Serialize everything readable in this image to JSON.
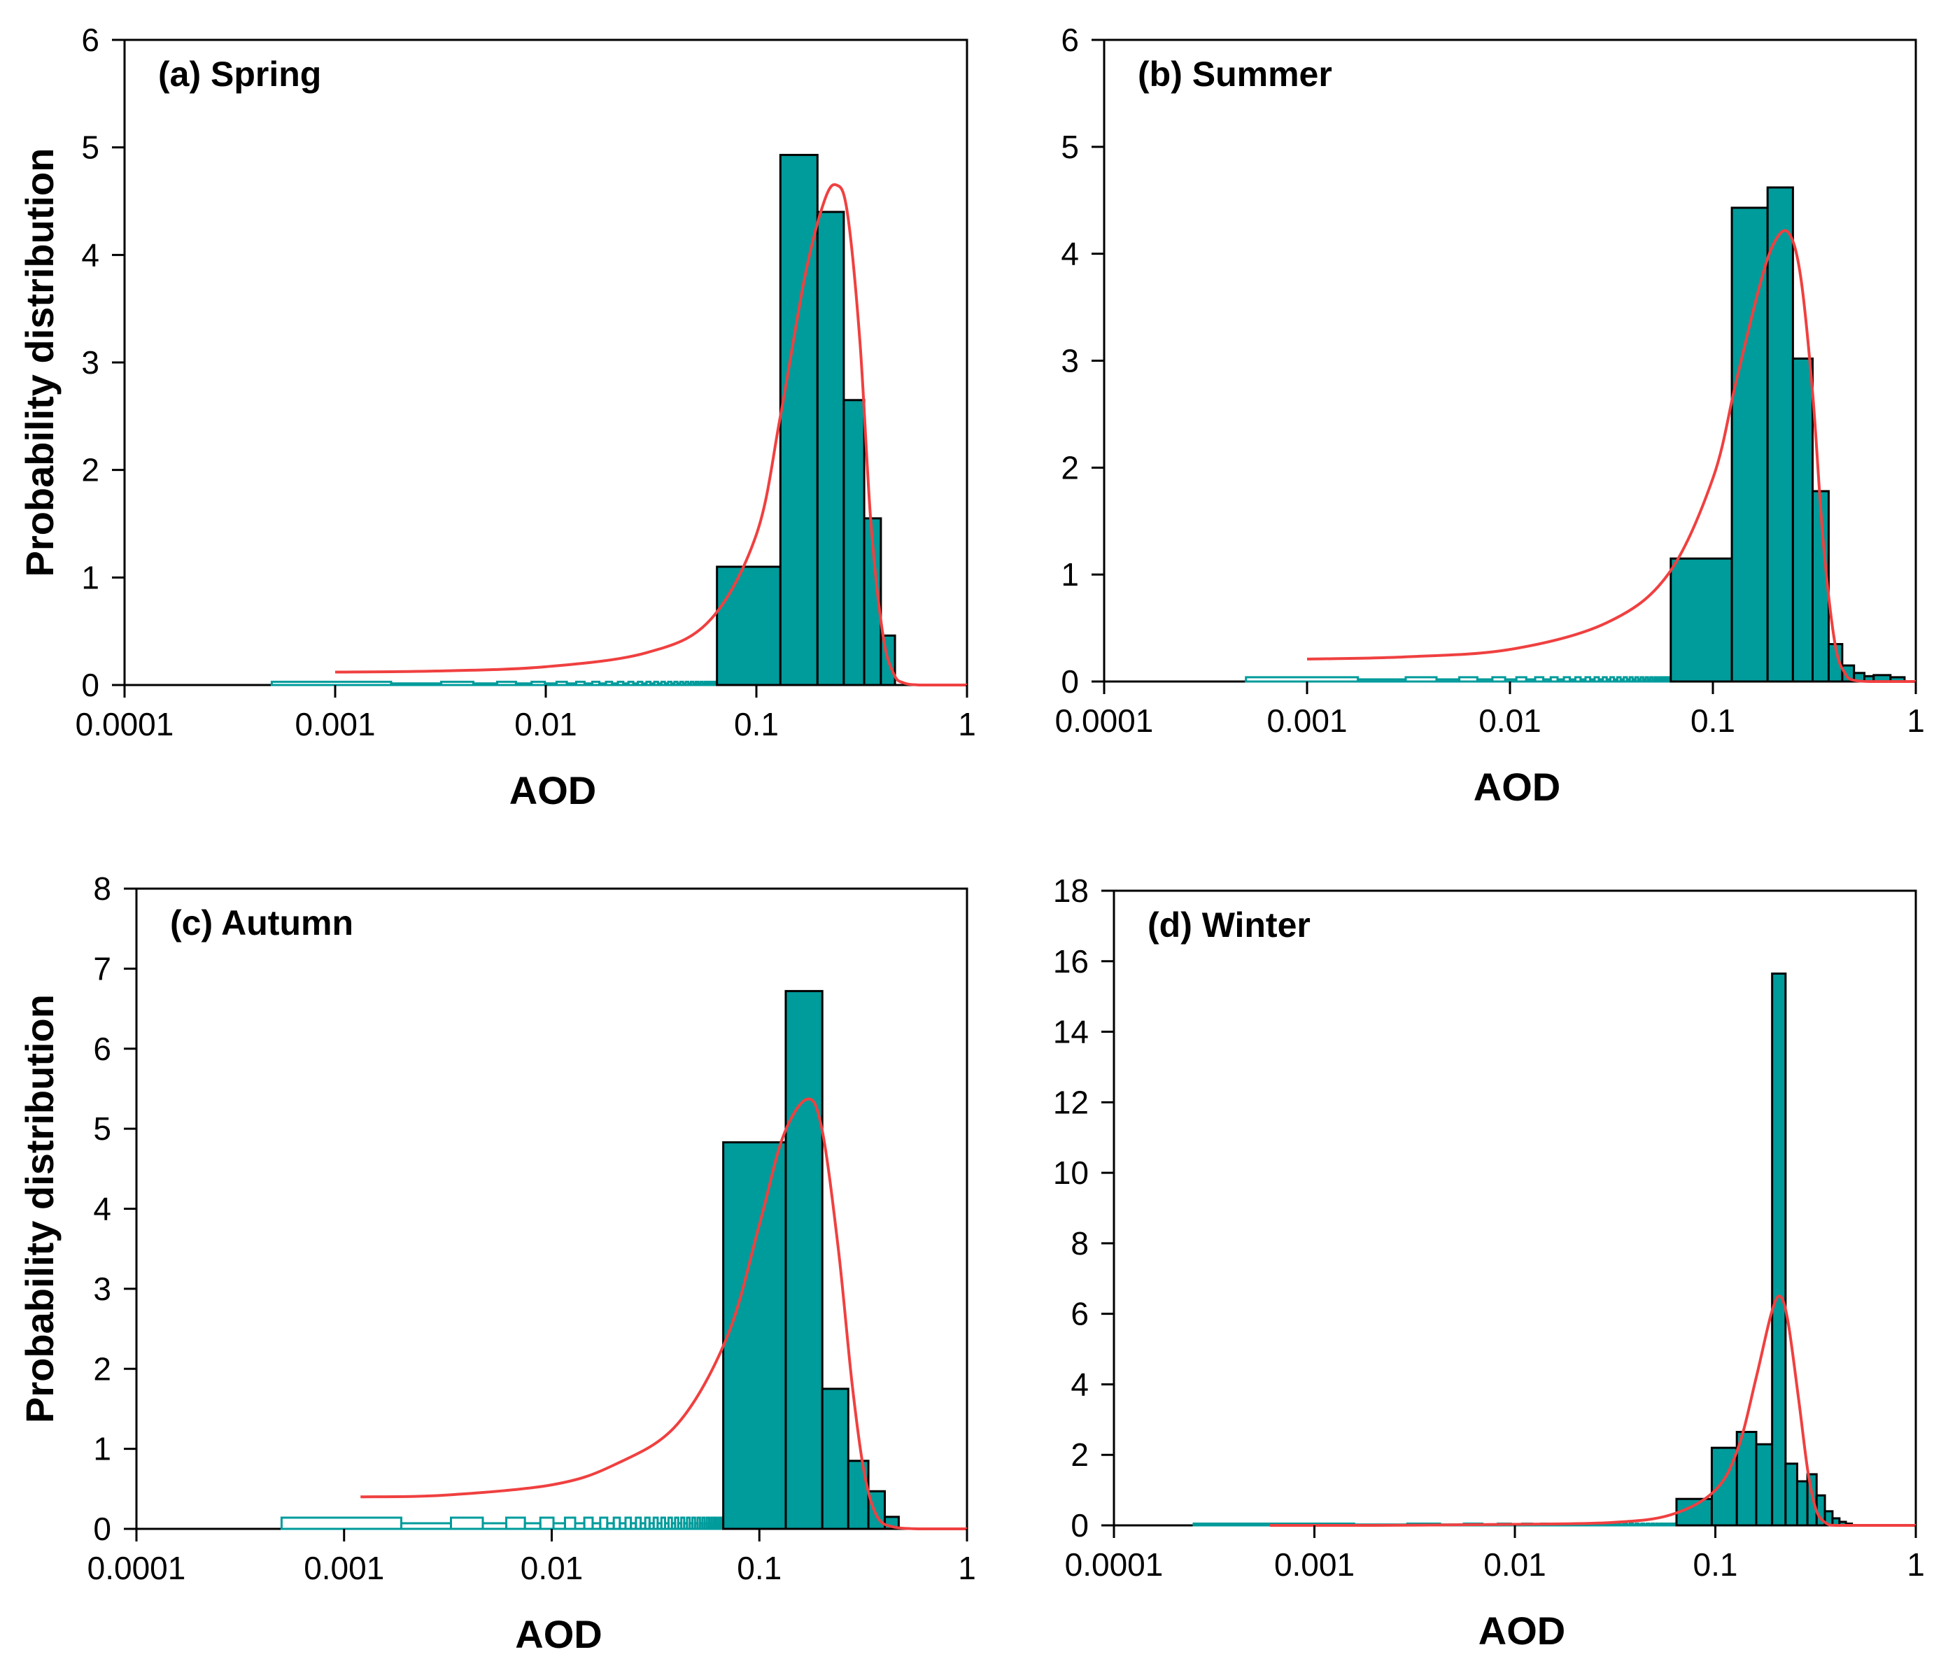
{
  "colors": {
    "bar": "#009b9b",
    "bar_edge": "#000000",
    "fit_line": "#f04040",
    "axis": "#000000"
  },
  "chart_data": [
    {
      "type": "bar",
      "title": "(a) Spring",
      "xlabel": "AOD",
      "ylabel": "Probability distribution",
      "xscale": "log",
      "xlim": [
        0.0001,
        1
      ],
      "xticks": [
        "0.0001",
        "0.001",
        "0.01",
        "0.1",
        "1"
      ],
      "ylim": [
        0,
        6
      ],
      "yticks": [
        "0",
        "1",
        "2",
        "3",
        "4",
        "5",
        "6"
      ],
      "low_tail_x_range": [
        0.0005,
        0.065
      ],
      "low_tail_value": 0.03,
      "bins": [
        {
          "x0": 0.065,
          "x1": 0.13,
          "value": 1.1
        },
        {
          "x0": 0.13,
          "x1": 0.195,
          "value": 4.93
        },
        {
          "x0": 0.195,
          "x1": 0.26,
          "value": 4.4
        },
        {
          "x0": 0.26,
          "x1": 0.325,
          "value": 2.65
        },
        {
          "x0": 0.325,
          "x1": 0.39,
          "value": 1.55
        },
        {
          "x0": 0.39,
          "x1": 0.455,
          "value": 0.46
        }
      ],
      "fit": {
        "x": [
          0.001,
          0.003,
          0.01,
          0.03,
          0.06,
          0.1,
          0.13,
          0.17,
          0.21,
          0.24,
          0.27,
          0.31,
          0.35,
          0.4,
          0.45,
          0.5,
          0.6,
          0.8,
          1.0
        ],
        "y": [
          0.12,
          0.13,
          0.17,
          0.3,
          0.6,
          1.4,
          2.5,
          3.8,
          4.5,
          4.65,
          4.4,
          3.2,
          1.5,
          0.45,
          0.1,
          0.02,
          0.0,
          0.0,
          0.0
        ]
      }
    },
    {
      "type": "bar",
      "title": "(b) Summer",
      "xlabel": "AOD",
      "ylabel": "",
      "xscale": "log",
      "xlim": [
        0.0001,
        1
      ],
      "xticks": [
        "0.0001",
        "0.001",
        "0.01",
        "0.1",
        "1"
      ],
      "ylim": [
        0,
        6
      ],
      "yticks": [
        "0",
        "1",
        "2",
        "3",
        "4",
        "5",
        "6"
      ],
      "low_tail_x_range": [
        0.0005,
        0.062
      ],
      "low_tail_value": 0.04,
      "bins": [
        {
          "x0": 0.062,
          "x1": 0.124,
          "value": 1.15
        },
        {
          "x0": 0.124,
          "x1": 0.186,
          "value": 4.43
        },
        {
          "x0": 0.186,
          "x1": 0.248,
          "value": 4.62
        },
        {
          "x0": 0.248,
          "x1": 0.31,
          "value": 3.02
        },
        {
          "x0": 0.31,
          "x1": 0.372,
          "value": 1.78
        },
        {
          "x0": 0.372,
          "x1": 0.434,
          "value": 0.35
        },
        {
          "x0": 0.434,
          "x1": 0.496,
          "value": 0.15
        },
        {
          "x0": 0.496,
          "x1": 0.558,
          "value": 0.08
        },
        {
          "x0": 0.558,
          "x1": 0.62,
          "value": 0.05
        },
        {
          "x0": 0.62,
          "x1": 0.75,
          "value": 0.06
        },
        {
          "x0": 0.75,
          "x1": 0.88,
          "value": 0.04
        }
      ],
      "fit": {
        "x": [
          0.001,
          0.003,
          0.01,
          0.03,
          0.06,
          0.1,
          0.13,
          0.17,
          0.2,
          0.235,
          0.27,
          0.31,
          0.35,
          0.4,
          0.45,
          0.5,
          0.6,
          0.8,
          1.0
        ],
        "y": [
          0.21,
          0.23,
          0.3,
          0.55,
          1.0,
          1.9,
          2.8,
          3.7,
          4.1,
          4.2,
          3.8,
          2.7,
          1.3,
          0.35,
          0.07,
          0.01,
          0.0,
          0.0,
          0.0
        ]
      }
    },
    {
      "type": "bar",
      "title": "(c) Autumn",
      "xlabel": "AOD",
      "ylabel": "Probability distribution",
      "xscale": "log",
      "xlim": [
        0.0001,
        1
      ],
      "xticks": [
        "0.0001",
        "0.001",
        "0.01",
        "0.1",
        "1"
      ],
      "ylim": [
        0,
        8
      ],
      "yticks": [
        "0",
        "1",
        "2",
        "3",
        "4",
        "5",
        "6",
        "7",
        "8"
      ],
      "low_tail_x_range": [
        0.0005,
        0.067
      ],
      "low_tail_value": 0.14,
      "bins": [
        {
          "x0": 0.067,
          "x1": 0.134,
          "value": 4.83
        },
        {
          "x0": 0.134,
          "x1": 0.201,
          "value": 6.72
        },
        {
          "x0": 0.201,
          "x1": 0.268,
          "value": 1.75
        },
        {
          "x0": 0.268,
          "x1": 0.335,
          "value": 0.85
        },
        {
          "x0": 0.335,
          "x1": 0.402,
          "value": 0.47
        },
        {
          "x0": 0.402,
          "x1": 0.469,
          "value": 0.15
        }
      ],
      "fit": {
        "x": [
          0.0012,
          0.003,
          0.01,
          0.02,
          0.04,
          0.07,
          0.1,
          0.13,
          0.17,
          0.2,
          0.24,
          0.28,
          0.32,
          0.37,
          0.45,
          0.6,
          0.8,
          1.0
        ],
        "y": [
          0.4,
          0.42,
          0.55,
          0.8,
          1.3,
          2.4,
          3.8,
          4.9,
          5.37,
          5.0,
          3.5,
          1.8,
          0.7,
          0.15,
          0.02,
          0.0,
          0.0,
          0.0
        ]
      }
    },
    {
      "type": "bar",
      "title": "(d) Winter",
      "xlabel": "AOD",
      "ylabel": "",
      "xscale": "log",
      "xlim": [
        0.0001,
        1
      ],
      "xticks": [
        "0.0001",
        "0.001",
        "0.01",
        "0.1",
        "1"
      ],
      "ylim": [
        0,
        18
      ],
      "yticks": [
        "0",
        "2",
        "4",
        "6",
        "8",
        "10",
        "12",
        "14",
        "16",
        "18"
      ],
      "low_tail_x_range": [
        0.00025,
        0.064
      ],
      "low_tail_value": 0.05,
      "bins": [
        {
          "x0": 0.064,
          "x1": 0.096,
          "value": 0.75
        },
        {
          "x0": 0.096,
          "x1": 0.128,
          "value": 2.2
        },
        {
          "x0": 0.128,
          "x1": 0.16,
          "value": 2.65
        },
        {
          "x0": 0.16,
          "x1": 0.192,
          "value": 2.3
        },
        {
          "x0": 0.192,
          "x1": 0.224,
          "value": 15.65
        },
        {
          "x0": 0.224,
          "x1": 0.256,
          "value": 1.75
        },
        {
          "x0": 0.256,
          "x1": 0.288,
          "value": 1.25
        },
        {
          "x0": 0.288,
          "x1": 0.32,
          "value": 1.45
        },
        {
          "x0": 0.32,
          "x1": 0.352,
          "value": 0.85
        },
        {
          "x0": 0.352,
          "x1": 0.384,
          "value": 0.4
        },
        {
          "x0": 0.384,
          "x1": 0.416,
          "value": 0.2
        },
        {
          "x0": 0.416,
          "x1": 0.448,
          "value": 0.1
        },
        {
          "x0": 0.448,
          "x1": 0.48,
          "value": 0.05
        }
      ],
      "fit": {
        "x": [
          0.0006,
          0.002,
          0.01,
          0.03,
          0.06,
          0.1,
          0.13,
          0.16,
          0.19,
          0.21,
          0.23,
          0.26,
          0.29,
          0.32,
          0.36,
          0.4,
          0.6,
          1.0
        ],
        "y": [
          0.0,
          0.0,
          0.03,
          0.08,
          0.3,
          1.0,
          2.2,
          4.2,
          6.0,
          6.5,
          5.8,
          3.6,
          1.5,
          0.4,
          0.05,
          0.0,
          0.0,
          0.0
        ]
      }
    }
  ]
}
